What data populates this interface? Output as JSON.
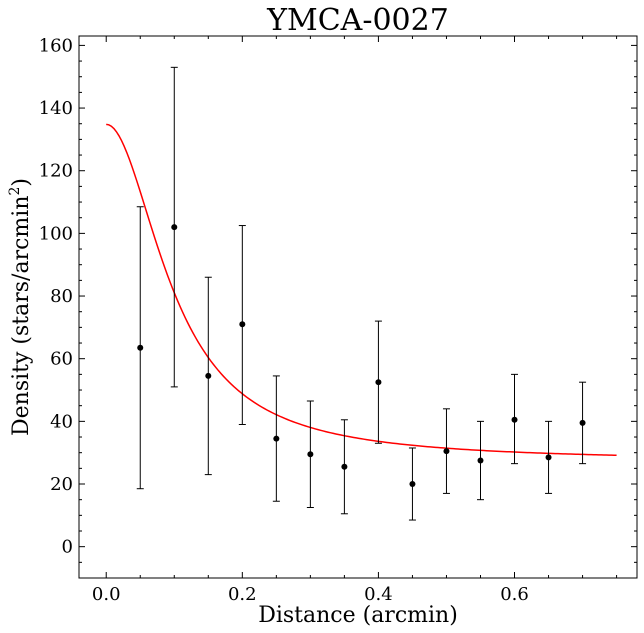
{
  "chart_data": {
    "type": "scatter",
    "title": "YMCA-0027",
    "xlabel": "Distance (arcmin)",
    "ylabel_main": "Density (stars/arcmin",
    "ylabel_sup": "2",
    "ylabel_close": ")",
    "xlim": [
      -0.04,
      0.78
    ],
    "ylim": [
      -10,
      163
    ],
    "xticks": [
      0.0,
      0.2,
      0.4,
      0.6
    ],
    "xtick_labels": [
      "0.0",
      "0.2",
      "0.4",
      "0.6"
    ],
    "yticks": [
      0,
      20,
      40,
      60,
      80,
      100,
      120,
      140,
      160
    ],
    "ytick_labels": [
      "0",
      "20",
      "40",
      "60",
      "80",
      "100",
      "120",
      "140",
      "160"
    ],
    "points": [
      {
        "x": 0.05,
        "y": 63.5,
        "lo": 18.5,
        "hi": 108.5
      },
      {
        "x": 0.1,
        "y": 102.0,
        "lo": 51.0,
        "hi": 153.0
      },
      {
        "x": 0.15,
        "y": 54.5,
        "lo": 23.0,
        "hi": 86.0
      },
      {
        "x": 0.2,
        "y": 71.0,
        "lo": 39.0,
        "hi": 102.5
      },
      {
        "x": 0.25,
        "y": 34.5,
        "lo": 14.5,
        "hi": 54.5
      },
      {
        "x": 0.3,
        "y": 29.5,
        "lo": 12.5,
        "hi": 46.5
      },
      {
        "x": 0.35,
        "y": 25.5,
        "lo": 10.5,
        "hi": 40.5
      },
      {
        "x": 0.4,
        "y": 52.5,
        "lo": 33.0,
        "hi": 72.0
      },
      {
        "x": 0.45,
        "y": 20.0,
        "lo": 8.5,
        "hi": 31.5
      },
      {
        "x": 0.5,
        "y": 30.5,
        "lo": 17.0,
        "hi": 44.0
      },
      {
        "x": 0.55,
        "y": 27.5,
        "lo": 15.0,
        "hi": 40.0
      },
      {
        "x": 0.6,
        "y": 40.5,
        "lo": 26.5,
        "hi": 55.0
      },
      {
        "x": 0.65,
        "y": 28.5,
        "lo": 17.0,
        "hi": 40.0
      },
      {
        "x": 0.7,
        "y": 39.5,
        "lo": 26.5,
        "hi": 52.5
      }
    ],
    "fit": {
      "type": "king-profile",
      "x_range": [
        0.0,
        0.75
      ],
      "background": 27.3,
      "central_excess": 107.5,
      "core_radius": 0.1,
      "color": "#ff0000"
    },
    "marker_color": "#000000"
  }
}
